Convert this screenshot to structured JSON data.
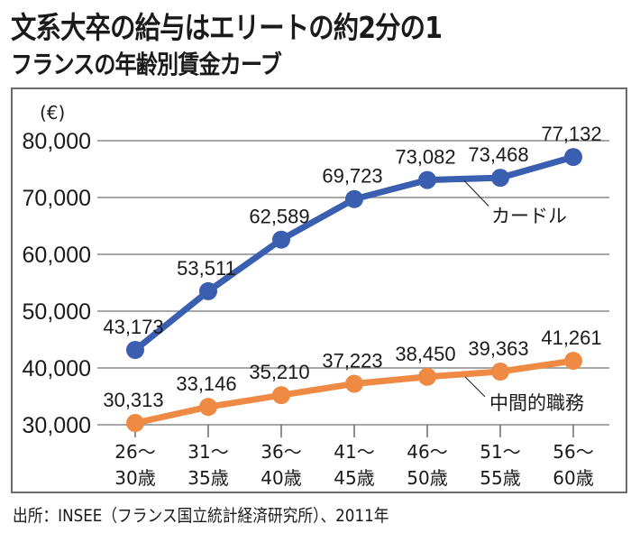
{
  "header": {
    "title": "文系大卒の給与はエリートの約2分の1",
    "subtitle": "フランスの年齢別賃金カーブ"
  },
  "footer": {
    "source": "出所：INSEE（フランス国立統計経済研究所）、2011年"
  },
  "chart_data": {
    "type": "line",
    "title": "文系大卒の給与はエリートの約2分の1",
    "subtitle": "フランスの年齢別賃金カーブ",
    "xlabel": "",
    "ylabel": "(€)",
    "unit_label": "(€)",
    "ylim": [
      30000,
      80000
    ],
    "yticks": [
      30000,
      40000,
      50000,
      60000,
      70000,
      80000
    ],
    "ytick_labels": [
      "30,000",
      "40,000",
      "50,000",
      "60,000",
      "70,000",
      "80,000"
    ],
    "grid": true,
    "legend": "inline-annotations",
    "categories": [
      [
        "26〜",
        "30歳"
      ],
      [
        "31〜",
        "35歳"
      ],
      [
        "36〜",
        "40歳"
      ],
      [
        "41〜",
        "45歳"
      ],
      [
        "46〜",
        "50歳"
      ],
      [
        "51〜",
        "55歳"
      ],
      [
        "56〜",
        "60歳"
      ]
    ],
    "series": [
      {
        "name": "カードル",
        "color": "#3a5fb0",
        "values": [
          43173,
          53511,
          62589,
          69723,
          73082,
          73468,
          77132
        ],
        "labels": [
          "43,173",
          "53,511",
          "62,589",
          "69,723",
          "73,082",
          "73,468",
          "77,132"
        ]
      },
      {
        "name": "中間的職務",
        "color": "#ef8a44",
        "values": [
          30313,
          33146,
          35210,
          37223,
          38450,
          39363,
          41261
        ],
        "labels": [
          "30,313",
          "33,146",
          "35,210",
          "37,223",
          "38,450",
          "39,363",
          "41,261"
        ]
      }
    ]
  }
}
